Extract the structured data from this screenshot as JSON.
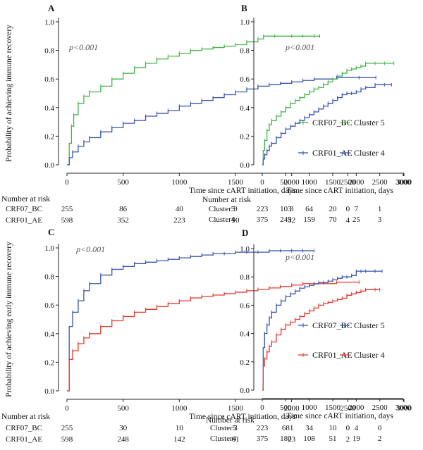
{
  "chart_data": [
    {
      "panel": "A",
      "type": "line",
      "ylabel": "Probability of achieving immune recovery",
      "xlabel": "Time since cART initiation, days",
      "xlim": [
        0,
        3000
      ],
      "ylim": [
        0,
        1.0
      ],
      "x_ticks": [
        "0",
        "500",
        "1000",
        "1500",
        "2000",
        "2500",
        "3000"
      ],
      "y_ticks": [
        "0.0",
        "0.2",
        "0.4",
        "0.6",
        "0.8",
        "1.0"
      ],
      "annotation": "p<0.001",
      "series": [
        {
          "name": "CRF07_BC",
          "color": "#44b549",
          "x": [
            0,
            20,
            40,
            60,
            100,
            150,
            200,
            300,
            400,
            500,
            600,
            700,
            800,
            900,
            1000,
            1100,
            1200,
            1300,
            1400,
            1500,
            1600,
            1700,
            1750,
            1850,
            2000,
            2100,
            2200,
            2250
          ],
          "y": [
            0,
            0.15,
            0.27,
            0.35,
            0.43,
            0.48,
            0.51,
            0.55,
            0.6,
            0.64,
            0.68,
            0.71,
            0.74,
            0.76,
            0.78,
            0.8,
            0.81,
            0.82,
            0.83,
            0.84,
            0.86,
            0.88,
            0.9,
            0.9,
            0.9,
            0.9,
            0.9,
            0.9
          ]
        },
        {
          "name": "CRF01_AE",
          "color": "#3955b0",
          "x": [
            0,
            20,
            50,
            100,
            150,
            200,
            300,
            400,
            500,
            600,
            700,
            800,
            900,
            1000,
            1100,
            1200,
            1300,
            1400,
            1500,
            1600,
            1700,
            1800,
            1900,
            2000,
            2100,
            2200,
            2400,
            2600,
            2750
          ],
          "y": [
            0,
            0.05,
            0.09,
            0.13,
            0.16,
            0.19,
            0.23,
            0.26,
            0.29,
            0.31,
            0.34,
            0.36,
            0.38,
            0.41,
            0.43,
            0.45,
            0.47,
            0.49,
            0.51,
            0.53,
            0.55,
            0.56,
            0.57,
            0.58,
            0.59,
            0.6,
            0.61,
            0.61,
            0.61
          ]
        }
      ],
      "risk_table": {
        "title": "Number at risk",
        "rows": [
          {
            "label": "CRF07_BC",
            "values": [
              "255",
              "86",
              "40",
              "9",
              "3",
              "0"
            ]
          },
          {
            "label": "CRF01_AE",
            "values": [
              "598",
              "352",
              "223",
              "90",
              "32",
              "4"
            ]
          }
        ]
      }
    },
    {
      "panel": "B",
      "type": "line",
      "ylabel": "",
      "xlabel": "Time since cART initiation, days",
      "xlim": [
        0,
        3000
      ],
      "ylim": [
        0,
        1.0
      ],
      "x_ticks": [
        "0",
        "500",
        "1000",
        "1500",
        "2000",
        "2500",
        "3000"
      ],
      "y_ticks": [
        "0.0",
        "0.2",
        "0.4",
        "0.6",
        "0.8",
        "1.0"
      ],
      "annotation": "p<0.001",
      "series": [
        {
          "name": "Cluster 5",
          "color": "#44b549",
          "x": [
            0,
            20,
            50,
            100,
            150,
            200,
            300,
            400,
            500,
            600,
            700,
            800,
            900,
            1000,
            1100,
            1200,
            1300,
            1400,
            1500,
            1600,
            1700,
            1800,
            1900,
            2000,
            2100,
            2200,
            2400,
            2600,
            2800
          ],
          "y": [
            0,
            0.1,
            0.17,
            0.24,
            0.28,
            0.31,
            0.34,
            0.37,
            0.4,
            0.43,
            0.45,
            0.47,
            0.49,
            0.51,
            0.53,
            0.54,
            0.56,
            0.58,
            0.6,
            0.62,
            0.64,
            0.66,
            0.67,
            0.68,
            0.69,
            0.71,
            0.71,
            0.71,
            0.71
          ]
        },
        {
          "name": "Cluster 4",
          "color": "#3955b0",
          "x": [
            0,
            20,
            50,
            100,
            150,
            200,
            300,
            400,
            500,
            600,
            700,
            800,
            900,
            1000,
            1100,
            1200,
            1300,
            1400,
            1500,
            1600,
            1700,
            1800,
            1900,
            2000,
            2100,
            2200,
            2400,
            2600,
            2750
          ],
          "y": [
            0,
            0.04,
            0.07,
            0.1,
            0.13,
            0.15,
            0.19,
            0.22,
            0.25,
            0.27,
            0.29,
            0.31,
            0.33,
            0.35,
            0.37,
            0.39,
            0.41,
            0.43,
            0.45,
            0.47,
            0.49,
            0.5,
            0.5,
            0.51,
            0.53,
            0.54,
            0.56,
            0.56,
            0.56
          ]
        }
      ],
      "risk_table": {
        "title": "Number at risk",
        "rows": [
          {
            "label": "Cluster5",
            "values": [
              "223",
              "103",
              "64",
              "20",
              "7",
              "1"
            ]
          },
          {
            "label": "Cluster4",
            "values": [
              "375",
              "249",
              "159",
              "70",
              "25",
              "3"
            ]
          }
        ]
      }
    },
    {
      "panel": "C",
      "type": "line",
      "ylabel": "Probability of achieving early immune recovery",
      "xlabel": "Time since cART initiation, days",
      "xlim": [
        0,
        3000
      ],
      "ylim": [
        0,
        1.0
      ],
      "x_ticks": [
        "0",
        "500",
        "1000",
        "1500",
        "2000",
        "2500",
        "3000"
      ],
      "y_ticks": [
        "0.0",
        "0.2",
        "0.4",
        "0.6",
        "0.8",
        "1.0"
      ],
      "annotation": "p<0.001",
      "series": [
        {
          "name": "CRF07_BC",
          "color": "#3955b0",
          "x": [
            0,
            20,
            50,
            100,
            150,
            200,
            300,
            400,
            500,
            600,
            700,
            800,
            900,
            1000,
            1100,
            1200,
            1300,
            1400,
            1500,
            1600,
            1700,
            1800,
            1900,
            2000,
            2100,
            2200
          ],
          "y": [
            0,
            0.45,
            0.55,
            0.63,
            0.7,
            0.75,
            0.81,
            0.85,
            0.87,
            0.89,
            0.9,
            0.91,
            0.92,
            0.93,
            0.94,
            0.95,
            0.96,
            0.96,
            0.97,
            0.97,
            0.97,
            0.98,
            0.98,
            0.98,
            0.98,
            0.98
          ]
        },
        {
          "name": "CRF01_AE",
          "color": "#e53a2f",
          "x": [
            0,
            20,
            50,
            100,
            150,
            200,
            300,
            400,
            500,
            600,
            700,
            800,
            900,
            1000,
            1100,
            1200,
            1300,
            1400,
            1500,
            1600,
            1700,
            1800,
            1900,
            2000,
            2100,
            2200,
            2400,
            2600
          ],
          "y": [
            0,
            0.22,
            0.28,
            0.33,
            0.37,
            0.4,
            0.45,
            0.49,
            0.52,
            0.55,
            0.57,
            0.59,
            0.61,
            0.63,
            0.65,
            0.66,
            0.67,
            0.68,
            0.69,
            0.7,
            0.71,
            0.72,
            0.73,
            0.74,
            0.75,
            0.75,
            0.76,
            0.76
          ]
        }
      ],
      "risk_table": {
        "title": "Number at risk",
        "rows": [
          {
            "label": "CRF07_BC",
            "values": [
              "255",
              "30",
              "10",
              "3",
              "1",
              "0"
            ]
          },
          {
            "label": "CRF01_AE",
            "values": [
              "598",
              "248",
              "142",
              "61",
              "23",
              "2"
            ]
          }
        ]
      }
    },
    {
      "panel": "D",
      "type": "line",
      "ylabel": "",
      "xlabel": "Time since cART initiation, days",
      "xlim": [
        0,
        3000
      ],
      "ylim": [
        0,
        1.0
      ],
      "x_ticks": [
        "0",
        "500",
        "1000",
        "1500",
        "2000",
        "2500",
        "3000"
      ],
      "y_ticks": [
        "0.0",
        "0.2",
        "0.4",
        "0.6",
        "0.8",
        "1.0"
      ],
      "annotation": "p<0.001",
      "series": [
        {
          "name": "Cluster 5",
          "color": "#3955b0",
          "x": [
            0,
            20,
            50,
            100,
            150,
            200,
            300,
            400,
            500,
            600,
            700,
            800,
            900,
            1000,
            1100,
            1200,
            1300,
            1400,
            1500,
            1600,
            1700,
            1800,
            1900,
            2000,
            2100,
            2200,
            2400,
            2550
          ],
          "y": [
            0,
            0.3,
            0.4,
            0.46,
            0.51,
            0.55,
            0.6,
            0.63,
            0.66,
            0.68,
            0.7,
            0.72,
            0.73,
            0.74,
            0.75,
            0.76,
            0.76,
            0.77,
            0.78,
            0.79,
            0.8,
            0.8,
            0.81,
            0.84,
            0.84,
            0.84,
            0.84,
            0.84
          ]
        },
        {
          "name": "Cluster 4",
          "color": "#e53a2f",
          "x": [
            0,
            20,
            50,
            100,
            150,
            200,
            300,
            400,
            500,
            600,
            700,
            800,
            900,
            1000,
            1100,
            1200,
            1300,
            1400,
            1500,
            1600,
            1700,
            1800,
            1900,
            2000,
            2100,
            2200,
            2400,
            2500
          ],
          "y": [
            0,
            0.17,
            0.22,
            0.27,
            0.31,
            0.34,
            0.39,
            0.43,
            0.46,
            0.48,
            0.5,
            0.52,
            0.54,
            0.56,
            0.58,
            0.6,
            0.61,
            0.62,
            0.63,
            0.64,
            0.65,
            0.67,
            0.68,
            0.69,
            0.7,
            0.71,
            0.71,
            0.71
          ]
        }
      ],
      "risk_table": {
        "title": "Number at risk",
        "rows": [
          {
            "label": "Cluster5",
            "values": [
              "223",
              "68",
              "34",
              "10",
              "4",
              "0"
            ]
          },
          {
            "label": "Cluster4",
            "values": [
              "375",
              "180",
              "108",
              "51",
              "19",
              "2"
            ]
          }
        ]
      }
    }
  ]
}
